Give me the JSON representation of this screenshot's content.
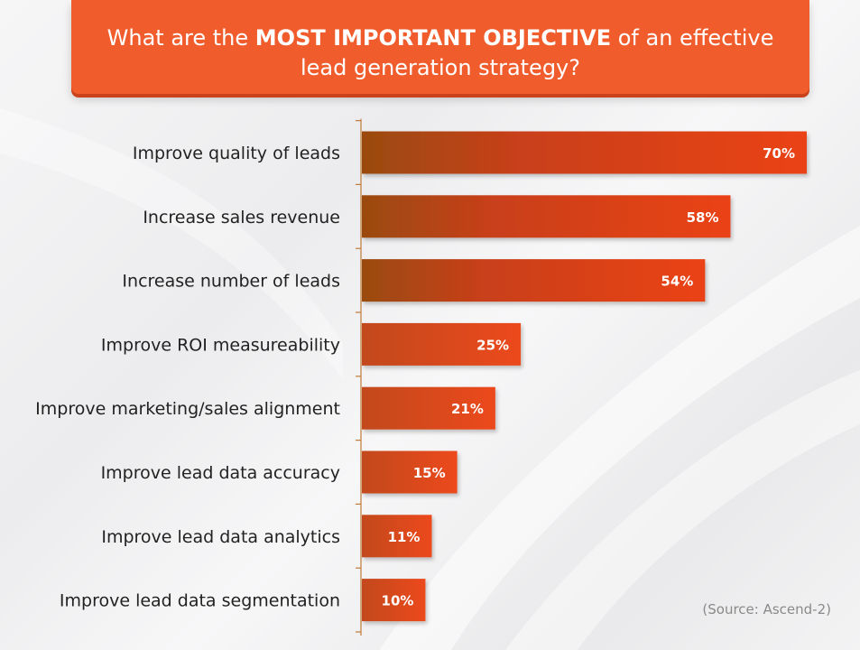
{
  "header": {
    "title_pre": "What are the ",
    "title_bold": "MOST IMPORTANT OBJECTIVE",
    "title_post": " of an effective",
    "title_line2": "lead generation strategy?"
  },
  "chart_data": {
    "type": "bar",
    "orientation": "horizontal",
    "categories": [
      "Improve quality of leads",
      "Increase sales revenue",
      "Increase number of leads",
      "Improve ROI measureability",
      "Improve marketing/sales alignment",
      "Improve lead data accuracy",
      "Improve lead data analytics",
      "Improve lead data segmentation"
    ],
    "values": [
      70,
      58,
      54,
      25,
      21,
      15,
      11,
      10
    ],
    "value_labels": [
      "70%",
      "58%",
      "54%",
      "25%",
      "21%",
      "15%",
      "11%",
      "10%"
    ],
    "unit": "%",
    "xlim": [
      0,
      70
    ],
    "grid": false,
    "legend": "none",
    "colors": {
      "bar_dark": "#9a4a10",
      "bar_main": "#e8431a",
      "bar_light": "#f05a2a",
      "axis": "#c07a3a",
      "label_text": "#222222",
      "value_text": "#ffffff"
    }
  },
  "source": "(Source: Ascend-2)",
  "colors": {
    "banner": "#f05c2c",
    "banner_shadow": "#c9421b",
    "source_text": "#8a8a8a"
  }
}
